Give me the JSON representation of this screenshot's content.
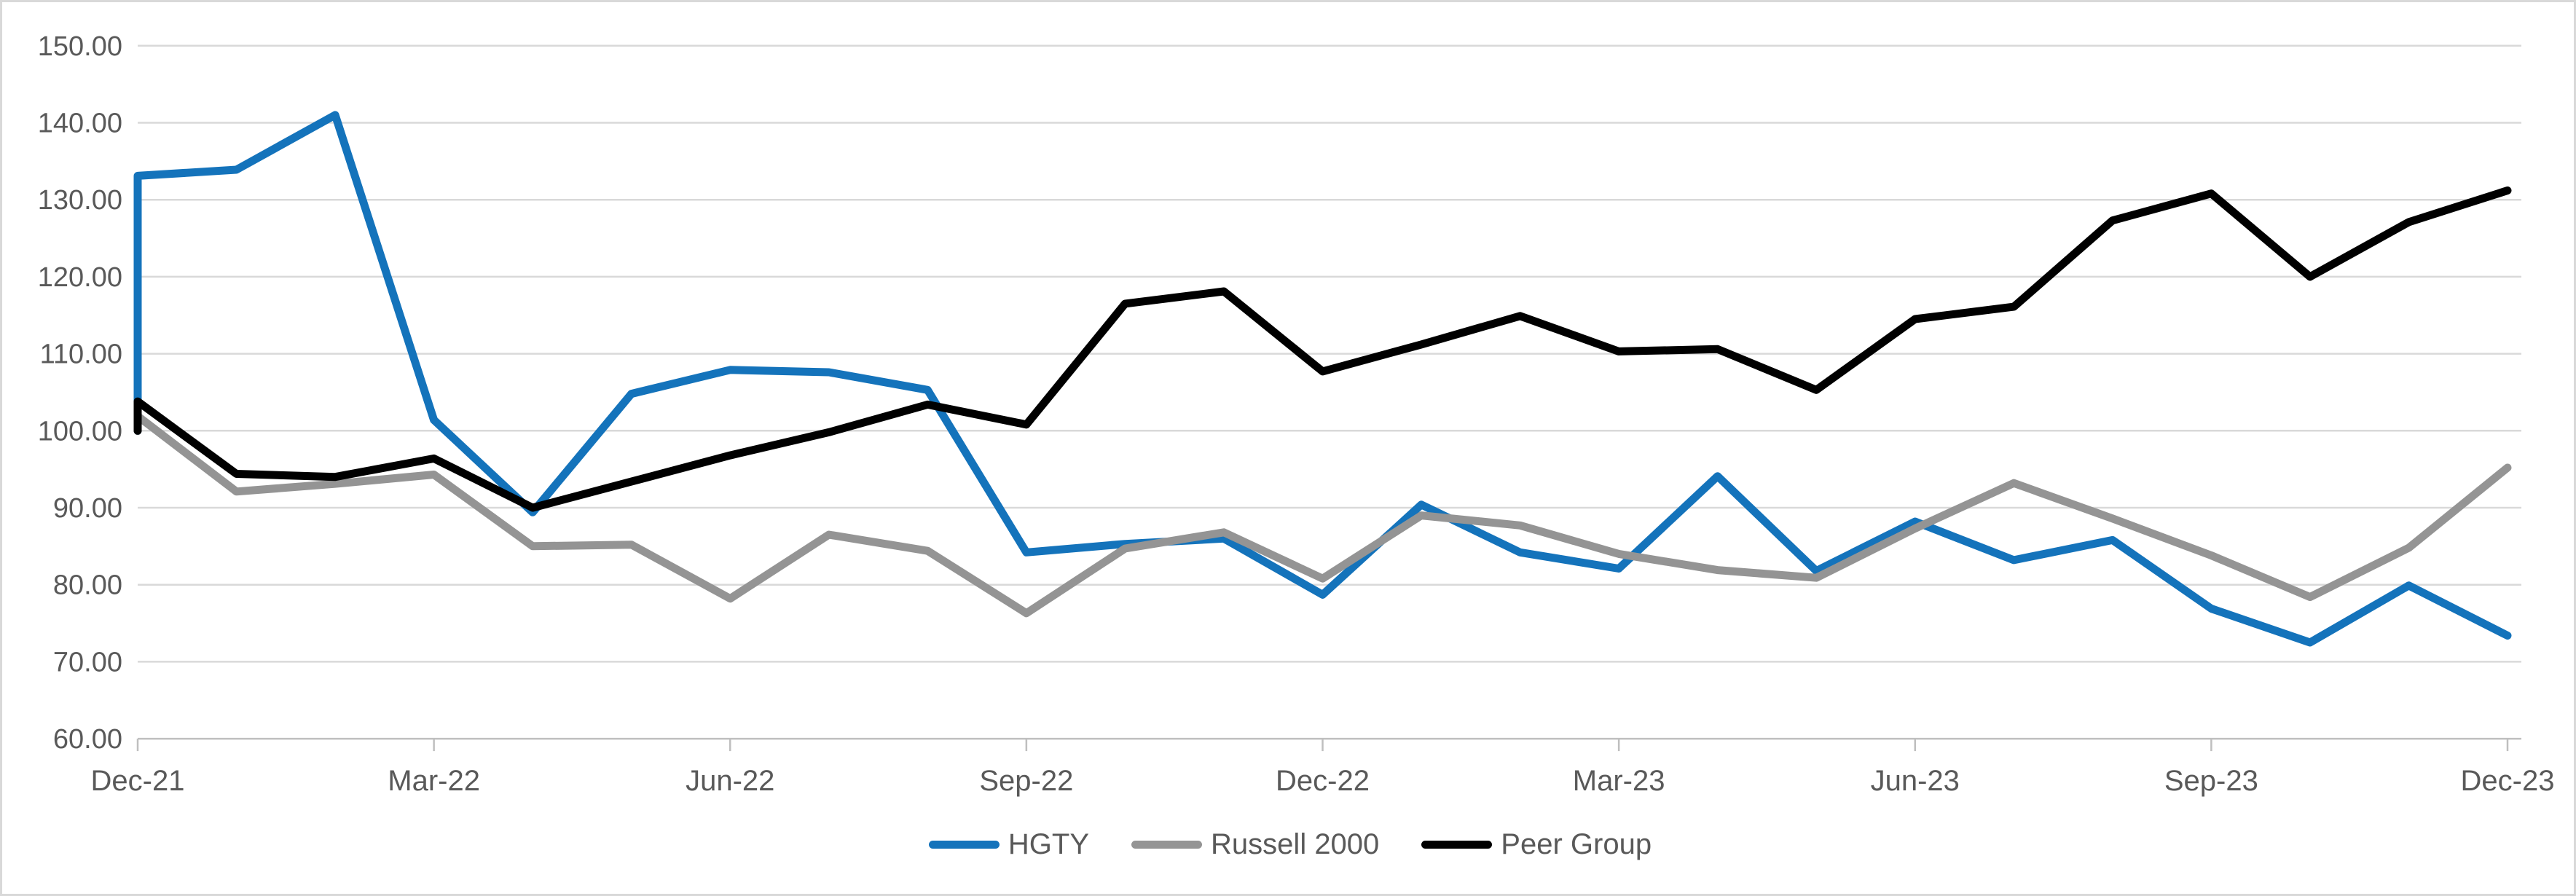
{
  "chart_data": {
    "type": "line",
    "title": "",
    "xlabel": "",
    "ylabel": "",
    "ylim": [
      60,
      150
    ],
    "ytick_step": 10,
    "y_tick_labels": [
      "150.00",
      "140.00",
      "130.00",
      "120.00",
      "110.00",
      "100.00",
      "90.00",
      "80.00",
      "70.00",
      "60.00"
    ],
    "x_tick_labels": [
      "Dec-21",
      "Mar-22",
      "Jun-22",
      "Sep-22",
      "Dec-22",
      "Mar-23",
      "Jun-23",
      "Sep-23",
      "Dec-23"
    ],
    "categories": [
      "Dec-21",
      "Jan-22",
      "Feb-22",
      "Mar-22",
      "Apr-22",
      "May-22",
      "Jun-22",
      "Jul-22",
      "Aug-22",
      "Sep-22",
      "Oct-22",
      "Nov-22",
      "Dec-22",
      "Jan-23",
      "Feb-23",
      "Mar-23",
      "Apr-23",
      "May-23",
      "Jun-23",
      "Jul-23",
      "Aug-23",
      "Sep-23",
      "Oct-23",
      "Nov-23",
      "Dec-23"
    ],
    "index_base": 100,
    "grid": true,
    "legend_position": "bottom",
    "series": [
      {
        "name": "HGTY",
        "color": "#1473BB",
        "values": [
          133.1,
          133.9,
          141.0,
          101.4,
          89.4,
          104.8,
          107.9,
          107.6,
          105.3,
          84.2,
          85.3,
          86.0,
          78.7,
          90.4,
          84.2,
          82.1,
          94.1,
          81.8,
          88.2,
          83.2,
          85.8,
          76.9,
          72.5,
          79.9,
          73.4
        ]
      },
      {
        "name": "Russell 2000",
        "color": "#949494",
        "values": [
          101.9,
          92.1,
          93.1,
          94.3,
          85.0,
          85.2,
          78.2,
          86.5,
          84.4,
          76.3,
          84.7,
          86.8,
          80.8,
          89.0,
          87.7,
          84.0,
          81.9,
          80.9,
          87.3,
          93.2,
          88.6,
          83.8,
          78.4,
          84.8,
          95.2
        ]
      },
      {
        "name": "Peer Group",
        "color": "#000000",
        "values": [
          103.8,
          94.4,
          94.0,
          96.4,
          90.0,
          93.4,
          96.8,
          99.8,
          103.4,
          100.8,
          116.5,
          118.1,
          107.7,
          111.2,
          114.9,
          110.3,
          110.6,
          105.3,
          114.5,
          116.1,
          127.3,
          130.8,
          120.0,
          127.1,
          131.2
        ]
      }
    ]
  },
  "styles": {
    "gridline_color": "#D9D9D9",
    "axis_line_color": "#BFBFBF",
    "tick_color": "#BFBFBF",
    "axis_text_color": "#595959",
    "line_width": 11
  }
}
